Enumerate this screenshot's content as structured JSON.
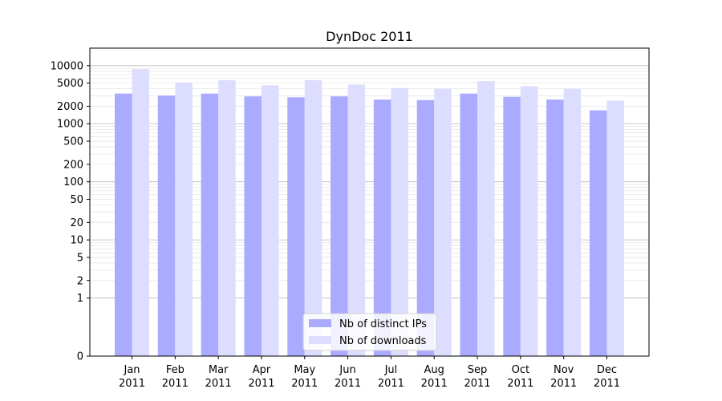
{
  "chart_data": {
    "type": "bar",
    "title": "DynDoc 2011",
    "xlabel": "",
    "ylabel": "",
    "yscale": "symlog",
    "ylim": [
      0,
      20000
    ],
    "yticks": [
      0,
      1,
      2,
      5,
      10,
      20,
      50,
      100,
      200,
      500,
      1000,
      2000,
      5000,
      10000
    ],
    "grid": true,
    "legend_position": "bottom-center",
    "categories": [
      [
        "Jan",
        "2011"
      ],
      [
        "Feb",
        "2011"
      ],
      [
        "Mar",
        "2011"
      ],
      [
        "Apr",
        "2011"
      ],
      [
        "May",
        "2011"
      ],
      [
        "Jun",
        "2011"
      ],
      [
        "Jul",
        "2011"
      ],
      [
        "Aug",
        "2011"
      ],
      [
        "Sep",
        "2011"
      ],
      [
        "Oct",
        "2011"
      ],
      [
        "Nov",
        "2011"
      ],
      [
        "Dec",
        "2011"
      ]
    ],
    "series": [
      {
        "name": "Nb of distinct IPs",
        "color": "#aaaaff",
        "values": [
          3300,
          3050,
          3300,
          2950,
          2850,
          2950,
          2600,
          2550,
          3300,
          2900,
          2600,
          1700
        ]
      },
      {
        "name": "Nb of downloads",
        "color": "#ddddff",
        "values": [
          8700,
          5100,
          5600,
          4600,
          5600,
          4700,
          4100,
          4000,
          5400,
          4400,
          4000,
          2500
        ]
      }
    ]
  }
}
